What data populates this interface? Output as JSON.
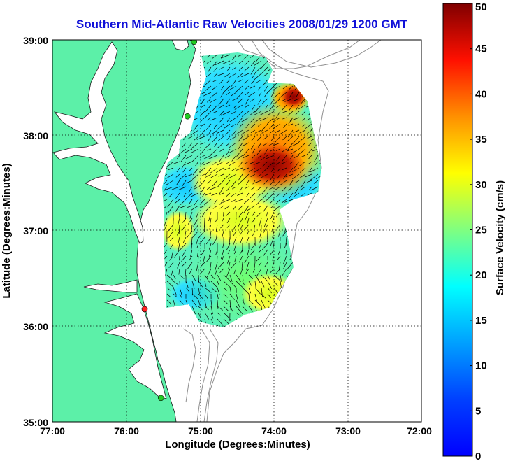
{
  "map": {
    "title": "Southern Mid-Atlantic Raw Velocities 2008/01/29 1200 GMT",
    "xlabel": "Longitude (Degrees:Minutes)",
    "ylabel": "Latitude (Degrees:Minutes)",
    "x_ticks": [
      "77:00",
      "76:00",
      "75:00",
      "74:00",
      "73:00",
      "72:00"
    ],
    "y_ticks": [
      "39:00",
      "38:00",
      "37:00",
      "36:00",
      "35:00"
    ],
    "lon_range": [
      -77,
      -72
    ],
    "lat_range": [
      35,
      39
    ],
    "land_color": "#5cf0a8",
    "ocean_color": "#ffffff",
    "grid": "dotted"
  },
  "colorbar": {
    "label": "Surface Velocity (cm/s)",
    "range": [
      0,
      50
    ],
    "ticks": [
      "50",
      "45",
      "40",
      "35",
      "30",
      "25",
      "20",
      "15",
      "10",
      "5",
      "0"
    ],
    "colormap": "jet"
  },
  "stations": [
    {
      "lat": 38.98,
      "lon": -75.08,
      "color": "#22cc22"
    },
    {
      "lat": 38.2,
      "lon": -75.17,
      "color": "#22cc22"
    },
    {
      "lat": 36.18,
      "lon": -75.75,
      "color": "#ff2020"
    },
    {
      "lat": 35.25,
      "lon": -75.53,
      "color": "#22cc22"
    }
  ]
}
